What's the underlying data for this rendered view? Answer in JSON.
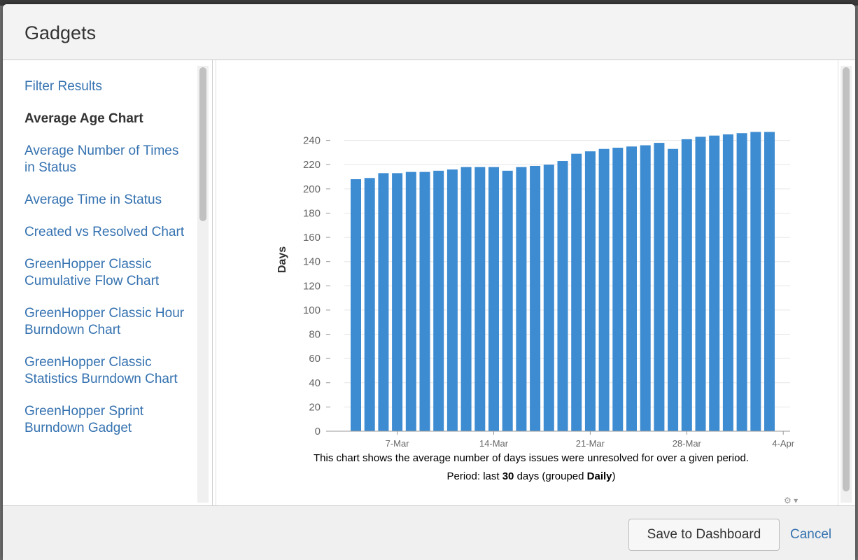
{
  "dialog": {
    "title": "Gadgets"
  },
  "sidebar": {
    "items": [
      {
        "label": "Filter Results",
        "active": false
      },
      {
        "label": "Average Age Chart",
        "active": true
      },
      {
        "label": "Average Number of Times in Status",
        "active": false
      },
      {
        "label": "Average Time in Status",
        "active": false
      },
      {
        "label": "Created vs Resolved Chart",
        "active": false
      },
      {
        "label": "GreenHopper Classic Cumulative Flow Chart",
        "active": false
      },
      {
        "label": "GreenHopper Classic Hour Burndown Chart",
        "active": false
      },
      {
        "label": "GreenHopper Classic Statistics Burndown Chart",
        "active": false
      },
      {
        "label": "GreenHopper Sprint Burndown Gadget",
        "active": false
      }
    ]
  },
  "chart_data": {
    "type": "bar",
    "title": "",
    "xlabel": "",
    "ylabel": "Days",
    "ylim": [
      0,
      260
    ],
    "yticks": [
      0,
      20,
      40,
      60,
      80,
      100,
      120,
      140,
      160,
      180,
      200,
      220,
      240
    ],
    "xtick_labels": [
      "7-Mar",
      "14-Mar",
      "21-Mar",
      "28-Mar",
      "4-Apr"
    ],
    "grid": true,
    "bar_color": "#3d8bd1",
    "categories": [
      "4-Mar",
      "5-Mar",
      "6-Mar",
      "7-Mar",
      "8-Mar",
      "9-Mar",
      "10-Mar",
      "11-Mar",
      "12-Mar",
      "13-Mar",
      "14-Mar",
      "15-Mar",
      "16-Mar",
      "17-Mar",
      "18-Mar",
      "19-Mar",
      "20-Mar",
      "21-Mar",
      "22-Mar",
      "23-Mar",
      "24-Mar",
      "25-Mar",
      "26-Mar",
      "27-Mar",
      "28-Mar",
      "29-Mar",
      "30-Mar",
      "31-Mar",
      "1-Apr",
      "2-Apr",
      "3-Apr"
    ],
    "values": [
      208,
      209,
      213,
      213,
      214,
      214,
      215,
      216,
      218,
      218,
      218,
      215,
      218,
      219,
      220,
      223,
      229,
      231,
      233,
      234,
      235,
      236,
      238,
      233,
      241,
      243,
      244,
      245,
      246,
      247,
      247
    ]
  },
  "caption": {
    "line1": "This chart shows the average number of days issues were unresolved for over a given period.",
    "period_prefix": "Period: last ",
    "period_days": "30",
    "period_mid": " days (grouped ",
    "period_group": "Daily",
    "period_suffix": ")"
  },
  "gadget_menu": {
    "icon": "gear-icon",
    "chevron": "▾"
  },
  "footer": {
    "save_label": "Save to Dashboard",
    "cancel_label": "Cancel"
  }
}
